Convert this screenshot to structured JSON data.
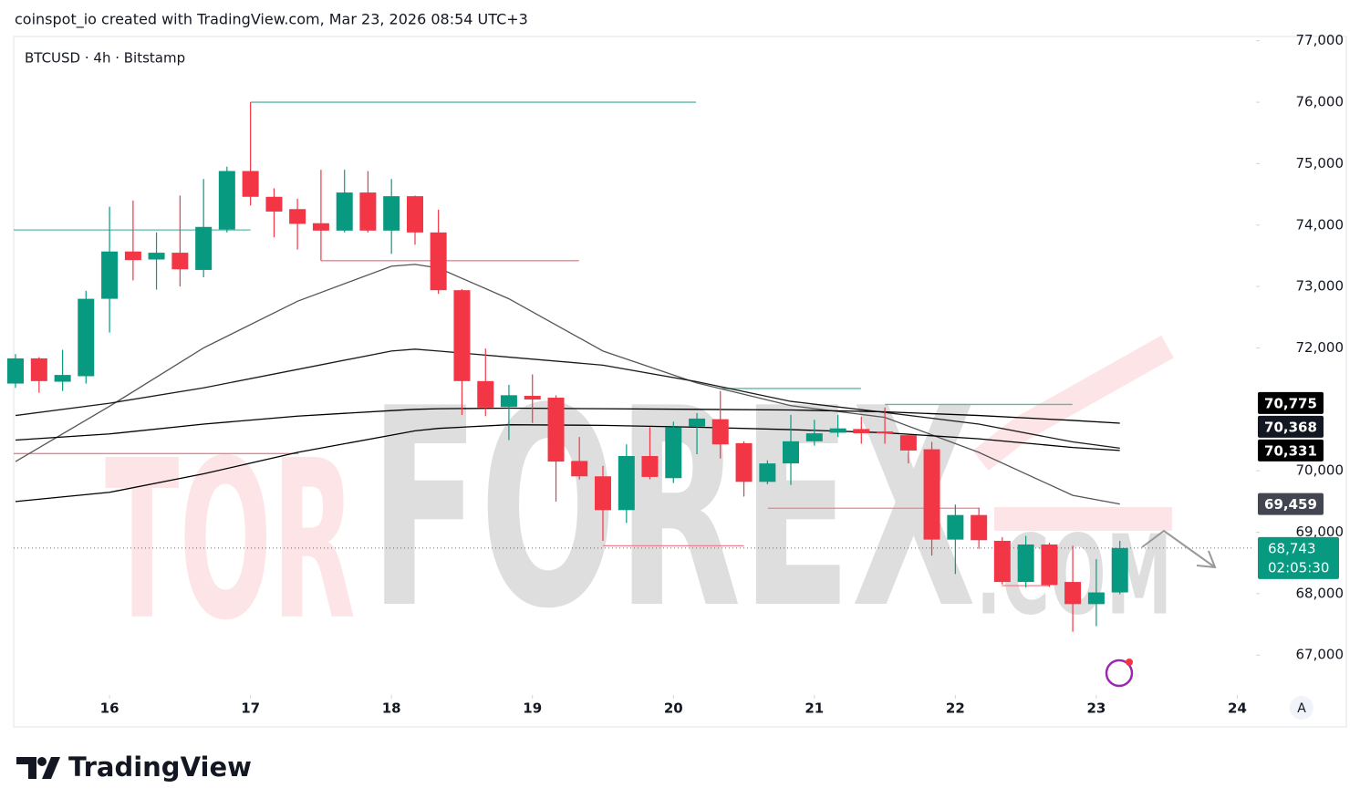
{
  "chart_data": {
    "type": "candlestick",
    "header": "coinspot_io created with TradingView.com, Mar 23, 2026 08:54 UTC+3",
    "symbol": "BTCUSD · 4h · Bitstamp",
    "brand": "TradingView",
    "watermark": [
      "TOR",
      "FOREX",
      ".COM"
    ],
    "scale_button": "A",
    "up_color": "#089981",
    "down_color": "#f23645",
    "x": [
      15.333,
      15.5,
      15.667,
      15.833,
      16,
      16.167,
      16.333,
      16.5,
      16.667,
      16.833,
      17,
      17.167,
      17.333,
      17.5,
      17.667,
      17.833,
      18,
      18.167,
      18.333,
      18.5,
      18.667,
      18.833,
      19,
      19.167,
      19.333,
      19.5,
      19.667,
      19.833,
      20,
      20.167,
      20.333,
      20.5,
      20.667,
      20.833,
      21,
      21.167,
      21.333,
      21.5,
      21.667,
      21.833,
      22,
      22.167,
      22.333,
      22.5,
      22.667,
      22.833,
      23,
      23.167
    ],
    "open": [
      71420,
      71830,
      71450,
      71540,
      72800,
      73570,
      73440,
      73550,
      73270,
      73930,
      74880,
      74460,
      74260,
      74030,
      73910,
      74530,
      73910,
      74470,
      73880,
      72940,
      71460,
      71040,
      71220,
      71190,
      70160,
      69910,
      69360,
      70240,
      69880,
      70720,
      70840,
      70450,
      69820,
      70120,
      70480,
      70620,
      70680,
      70640,
      70580,
      70350,
      68880,
      69280,
      68860,
      68190,
      68800,
      68190,
      67830,
      68020
    ],
    "high": [
      71900,
      71850,
      71970,
      72930,
      74300,
      74400,
      73880,
      74480,
      74750,
      74950,
      76000,
      74600,
      74430,
      74900,
      74900,
      74880,
      74750,
      74480,
      74250,
      72960,
      71990,
      71400,
      71570,
      71230,
      70550,
      70080,
      70430,
      70710,
      70800,
      70940,
      71300,
      70480,
      70170,
      70910,
      70830,
      70910,
      70880,
      71030,
      70590,
      70470,
      69450,
      69400,
      68920,
      68940,
      68830,
      68780,
      68560,
      68860
    ],
    "low": [
      71350,
      71270,
      71300,
      71420,
      72250,
      73100,
      72950,
      73000,
      73150,
      73880,
      74320,
      73800,
      73600,
      73420,
      73880,
      73880,
      73530,
      73680,
      72880,
      70910,
      70890,
      70500,
      70780,
      69500,
      69860,
      68860,
      69150,
      69860,
      69800,
      70270,
      70200,
      69580,
      69780,
      69770,
      70410,
      70550,
      70440,
      70440,
      70120,
      68620,
      68320,
      68730,
      68150,
      68100,
      68110,
      67380,
      67470,
      67990
    ],
    "close": [
      71830,
      71460,
      71560,
      72800,
      73570,
      73430,
      73550,
      73280,
      73970,
      74880,
      74460,
      74220,
      74020,
      73910,
      74530,
      73910,
      74470,
      73880,
      72940,
      71460,
      71030,
      71230,
      71160,
      70150,
      69910,
      69360,
      70240,
      69900,
      70710,
      70850,
      70430,
      69820,
      70120,
      70480,
      70610,
      70690,
      70610,
      70610,
      70330,
      68880,
      69280,
      68870,
      68190,
      68800,
      68140,
      67830,
      68020,
      68743
    ],
    "lines": [
      {
        "color": "#555555",
        "x": [
          15.333,
          16,
          16.667,
          17.333,
          18,
          18.167,
          18.333,
          18.833,
          19.5,
          20.167,
          20.833,
          21.5,
          22.167,
          22.833,
          23.167
        ],
        "values": [
          70150,
          71050,
          72000,
          72760,
          73330,
          73360,
          73300,
          72800,
          71950,
          71430,
          71060,
          70870,
          70300,
          69600,
          69459
        ],
        "last_label": {
          "value": 69459,
          "label": "69,459"
        },
        "label_color": "#434651"
      },
      {
        "color": "#1a1a1a",
        "x": [
          15.333,
          16,
          16.667,
          17.333,
          18,
          18.167,
          18.333,
          18.833,
          19.5,
          20.167,
          20.833,
          21.5,
          22.167,
          22.833,
          23.167
        ],
        "values": [
          70900,
          71100,
          71350,
          71650,
          71950,
          71980,
          71950,
          71850,
          71720,
          71450,
          71130,
          70950,
          70760,
          70470,
          70368
        ],
        "last_label": {
          "value": 70368,
          "label": "70,368"
        },
        "label_color": "#131722"
      },
      {
        "color": "#000000",
        "x": [
          15.333,
          16,
          16.667,
          17.333,
          18,
          18.167,
          18.333,
          18.833,
          19.5,
          20.167,
          20.833,
          21.5,
          22.167,
          22.833,
          23.167
        ],
        "values": [
          70500,
          70600,
          70760,
          70890,
          70980,
          71000,
          71010,
          71020,
          71010,
          71000,
          70990,
          70960,
          70900,
          70820,
          70775
        ],
        "last_label": {
          "value": 70775,
          "label": "70,775"
        },
        "label_color": "#000000"
      },
      {
        "color": "#000000",
        "x": [
          15.333,
          16,
          16.667,
          17.333,
          18,
          18.167,
          18.333,
          18.833,
          19.5,
          20.167,
          20.833,
          21.5,
          22.167,
          22.833,
          23.167
        ],
        "values": [
          69500,
          69650,
          69950,
          70300,
          70580,
          70650,
          70690,
          70750,
          70740,
          70710,
          70670,
          70620,
          70520,
          70380,
          70331
        ],
        "last_label": {
          "value": 70331,
          "label": "70,331"
        },
        "label_color": "#000000"
      }
    ],
    "levels": [
      {
        "value": 76000,
        "x": [
          17,
          20.16
        ],
        "color": "#5fb8a8"
      },
      {
        "value": 73920,
        "x": [
          15.32,
          17
        ],
        "color": "#5fb8a8"
      },
      {
        "value": 73420,
        "x": [
          17.5,
          19.33
        ],
        "color": "#f08090"
      },
      {
        "value": 71340,
        "x": [
          20.34,
          21.33
        ],
        "color": "#5fb8a8"
      },
      {
        "value": 71080,
        "x": [
          21.5,
          22.83
        ],
        "color": "#5fb8a8"
      },
      {
        "value": 70280,
        "x": [
          15.32,
          17.34
        ],
        "color": "#f08090"
      },
      {
        "value": 69390,
        "x": [
          20.67,
          22.17
        ],
        "color": "#f08090"
      },
      {
        "value": 68780,
        "x": [
          19.5,
          20.5
        ],
        "color": "#f08090"
      },
      {
        "value": 68130,
        "x": [
          22.33,
          22.67
        ],
        "color": "#f08090"
      }
    ],
    "current_price": {
      "value": 68743,
      "label": "68,743",
      "countdown": "02:05:30",
      "color": "#089981"
    },
    "xlim": [
      15.32,
      24.12
    ],
    "ylim": [
      66380,
      77070
    ],
    "xticks": [
      16,
      17,
      18,
      19,
      20,
      21,
      22,
      23,
      24
    ],
    "yticks": [
      {
        "value": 67000,
        "label": "67,000"
      },
      {
        "value": 68000,
        "label": "68,000"
      },
      {
        "value": 69000,
        "label": "69,000"
      },
      {
        "value": 70000,
        "label": "70,000"
      },
      {
        "value": 72000,
        "label": "72,000"
      },
      {
        "value": 73000,
        "label": "73,000"
      },
      {
        "value": 74000,
        "label": "74,000"
      },
      {
        "value": 75000,
        "label": "75,000"
      },
      {
        "value": 76000,
        "label": "76,000"
      },
      {
        "value": 77000,
        "label": "77,000"
      }
    ]
  }
}
